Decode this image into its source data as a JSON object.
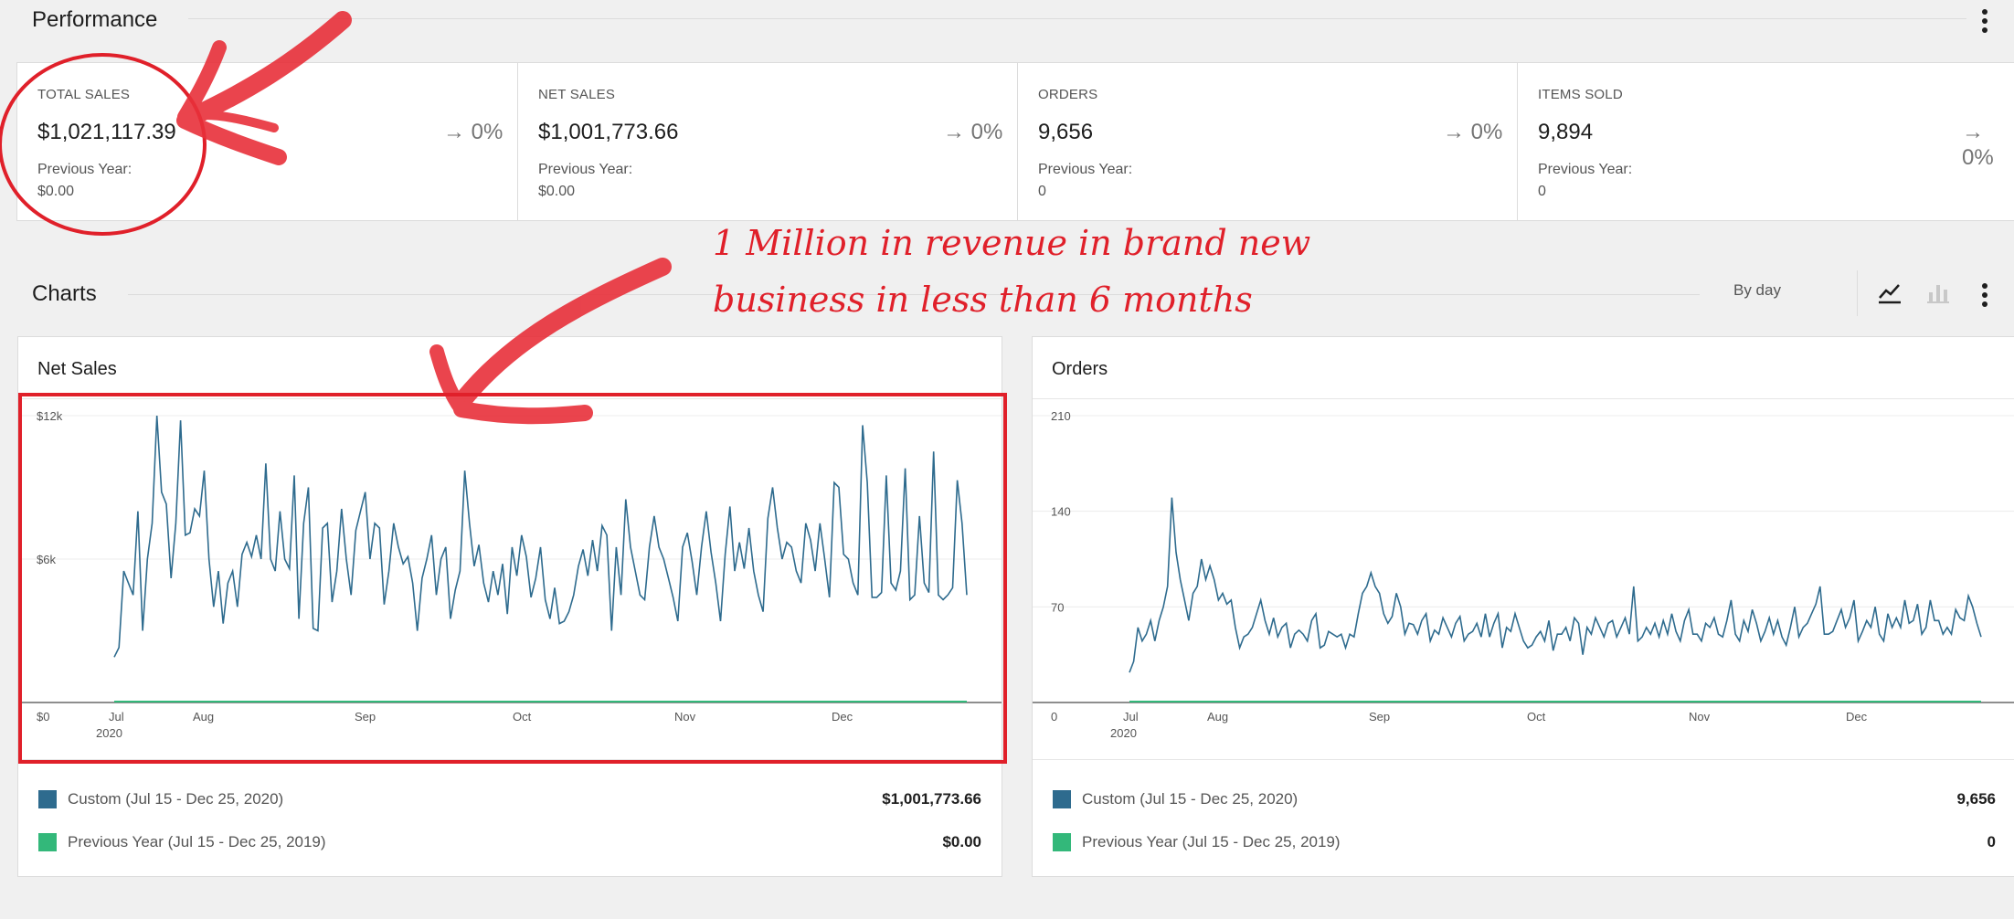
{
  "performance": {
    "title": "Performance",
    "cards": [
      {
        "label": "TOTAL SALES",
        "value": "$1,021,117.39",
        "delta": "0%",
        "prev_label": "Previous Year:",
        "prev_value": "$0.00"
      },
      {
        "label": "NET SALES",
        "value": "$1,001,773.66",
        "delta": "0%",
        "prev_label": "Previous Year:",
        "prev_value": "$0.00"
      },
      {
        "label": "ORDERS",
        "value": "9,656",
        "delta": "0%",
        "prev_label": "Previous Year:",
        "prev_value": "0"
      },
      {
        "label": "ITEMS SOLD",
        "value": "9,894",
        "delta": "0%",
        "prev_label": "Previous Year:",
        "prev_value": "0"
      }
    ]
  },
  "charts_section": {
    "title": "Charts",
    "interval": "By day",
    "icons": [
      "line-chart-icon",
      "bar-chart-icon",
      "more-vertical-icon"
    ]
  },
  "annotation": {
    "line1": "1 Million in revenue in brand new",
    "line2": "business in less than 6 months",
    "color": "#e0202a"
  },
  "colors": {
    "custom": "#2e6b8e",
    "previous": "#33b87a"
  },
  "chart_data": [
    {
      "type": "line",
      "title": "Net Sales",
      "y_ticks": [
        "$0",
        "$6k",
        "$12k"
      ],
      "ylim": [
        0,
        12000
      ],
      "x_ticks": [
        "Jul",
        "Aug",
        "Sep",
        "Oct",
        "Nov",
        "Dec"
      ],
      "x_year_label": "2020",
      "grid": true,
      "series": [
        {
          "name": "Custom (Jul 15 - Dec 25, 2020)",
          "total": "$1,001,773.66",
          "values": [
            1900,
            2300,
            5500,
            5000,
            4500,
            8000,
            3000,
            6000,
            7500,
            12000,
            8800,
            8300,
            5200,
            7500,
            11800,
            7000,
            7100,
            8100,
            7800,
            9700,
            6000,
            4000,
            5500,
            3300,
            5000,
            5500,
            4000,
            6200,
            6700,
            6100,
            7000,
            6000,
            10000,
            6000,
            5500,
            8000,
            6000,
            5600,
            9500,
            3500,
            7500,
            9000,
            3100,
            3000,
            7300,
            7500,
            4200,
            5500,
            8100,
            6000,
            4500,
            7200,
            8000,
            8800,
            6000,
            7500,
            7300,
            4100,
            5500,
            7500,
            6500,
            5800,
            6100,
            5000,
            3000,
            5200,
            6000,
            7000,
            4500,
            6000,
            6500,
            3500,
            4700,
            5500,
            9700,
            7500,
            5700,
            6600,
            5000,
            4200,
            5500,
            4500,
            5800,
            3700,
            6500,
            5300,
            7000,
            6100,
            4400,
            5200,
            6500,
            4300,
            3500,
            4800,
            3300,
            3400,
            3800,
            4500,
            5700,
            6400,
            5300,
            6800,
            5500,
            7400,
            7000,
            3000,
            6500,
            4500,
            8500,
            6500,
            5500,
            4500,
            4300,
            6500,
            7800,
            6500,
            6000,
            5200,
            4400,
            3400,
            6500,
            7100,
            5900,
            4500,
            6500,
            8000,
            6300,
            5000,
            3400,
            6200,
            8200,
            5500,
            6700,
            5600,
            7300,
            5500,
            4500,
            3800,
            7700,
            9000,
            7300,
            6000,
            6700,
            6500,
            5500,
            5000,
            7500,
            6800,
            5500,
            7500,
            6000,
            4400,
            9200,
            9000,
            6200,
            6000,
            5000,
            4500,
            11600,
            9200,
            4400,
            4400,
            4600,
            9500,
            5000,
            4700,
            5500,
            9800,
            4300,
            4500,
            7800,
            5000,
            4600,
            10500,
            4500,
            4300,
            4500,
            4800,
            9300,
            7500,
            4500
          ]
        },
        {
          "name": "Previous Year (Jul 15 - Dec 25, 2019)",
          "total": "$0.00",
          "values": [
            0,
            0
          ]
        }
      ]
    },
    {
      "type": "line",
      "title": "Orders",
      "y_ticks": [
        "0",
        "70",
        "140",
        "210"
      ],
      "ylim": [
        0,
        210
      ],
      "x_ticks": [
        "Jul",
        "Aug",
        "Sep",
        "Oct",
        "Nov",
        "Dec"
      ],
      "x_year_label": "2020",
      "grid": true,
      "series": [
        {
          "name": "Custom (Jul 15 - Dec 25, 2020)",
          "total": "9,656",
          "values": [
            22,
            30,
            55,
            45,
            50,
            60,
            45,
            60,
            70,
            85,
            150,
            110,
            90,
            75,
            60,
            80,
            85,
            105,
            90,
            100,
            90,
            75,
            80,
            72,
            75,
            55,
            40,
            48,
            50,
            55,
            65,
            75,
            60,
            50,
            62,
            48,
            55,
            58,
            40,
            50,
            53,
            50,
            45,
            60,
            65,
            40,
            42,
            52,
            50,
            48,
            50,
            40,
            50,
            48,
            65,
            80,
            85,
            95,
            85,
            80,
            65,
            58,
            63,
            80,
            70,
            50,
            58,
            57,
            50,
            60,
            65,
            45,
            53,
            50,
            62,
            55,
            48,
            58,
            63,
            45,
            50,
            52,
            58,
            48,
            65,
            48,
            58,
            65,
            40,
            55,
            52,
            65,
            55,
            45,
            40,
            42,
            48,
            52,
            45,
            60,
            38,
            50,
            50,
            55,
            45,
            62,
            58,
            35,
            55,
            50,
            62,
            55,
            48,
            58,
            60,
            48,
            55,
            62,
            50,
            85,
            45,
            48,
            55,
            50,
            58,
            48,
            60,
            50,
            65,
            52,
            45,
            60,
            68,
            50,
            50,
            45,
            58,
            55,
            62,
            50,
            48,
            60,
            75,
            50,
            45,
            60,
            52,
            68,
            58,
            45,
            52,
            62,
            50,
            60,
            48,
            42,
            55,
            70,
            48,
            55,
            58,
            65,
            72,
            85,
            50,
            50,
            52,
            60,
            68,
            55,
            62,
            75,
            45,
            52,
            60,
            55,
            70,
            50,
            45,
            65,
            55,
            62,
            55,
            75,
            58,
            60,
            72,
            50,
            55,
            75,
            60,
            60,
            50,
            55,
            50,
            68,
            62,
            60,
            78,
            70,
            58,
            48
          ]
        },
        {
          "name": "Previous Year (Jul 15 - Dec 25, 2019)",
          "total": "0",
          "values": [
            0,
            0
          ]
        }
      ]
    }
  ]
}
